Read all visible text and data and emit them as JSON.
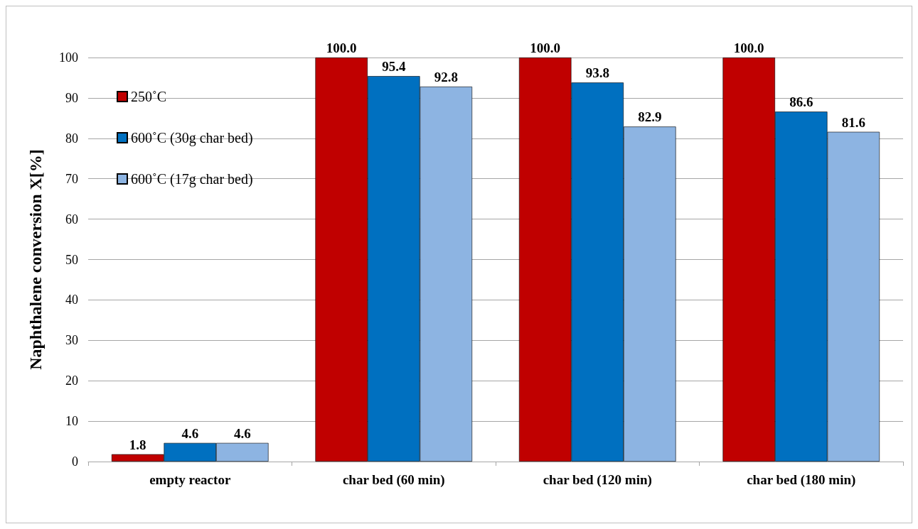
{
  "chart_data": {
    "type": "bar",
    "ylabel": "Naphthalene conversion X[%]",
    "categories": [
      "empty reactor",
      "char bed (60 min)",
      "char bed (120 min)",
      "char bed (180 min)"
    ],
    "series": [
      {
        "name": "250˚C",
        "color": "#c00000",
        "values": [
          1.8,
          100.0,
          100.0,
          100.0
        ],
        "value_labels": [
          "1.8",
          "100.0",
          "100.0",
          "100.0"
        ]
      },
      {
        "name": "600˚C (30g char bed)",
        "color": "#0070c0",
        "values": [
          4.6,
          95.4,
          93.8,
          86.6
        ],
        "value_labels": [
          "4.6",
          "95.4",
          "93.8",
          "86.6"
        ]
      },
      {
        "name": "600˚C (17g char bed)",
        "color": "#8db4e2",
        "values": [
          4.6,
          92.8,
          82.9,
          81.6
        ],
        "value_labels": [
          "4.6",
          "92.8",
          "82.9",
          "81.6"
        ]
      }
    ],
    "ylim": [
      0,
      100
    ],
    "yticks": [
      0,
      10,
      20,
      30,
      40,
      50,
      60,
      70,
      80,
      90,
      100
    ],
    "grid": "y",
    "legend": "top left"
  }
}
